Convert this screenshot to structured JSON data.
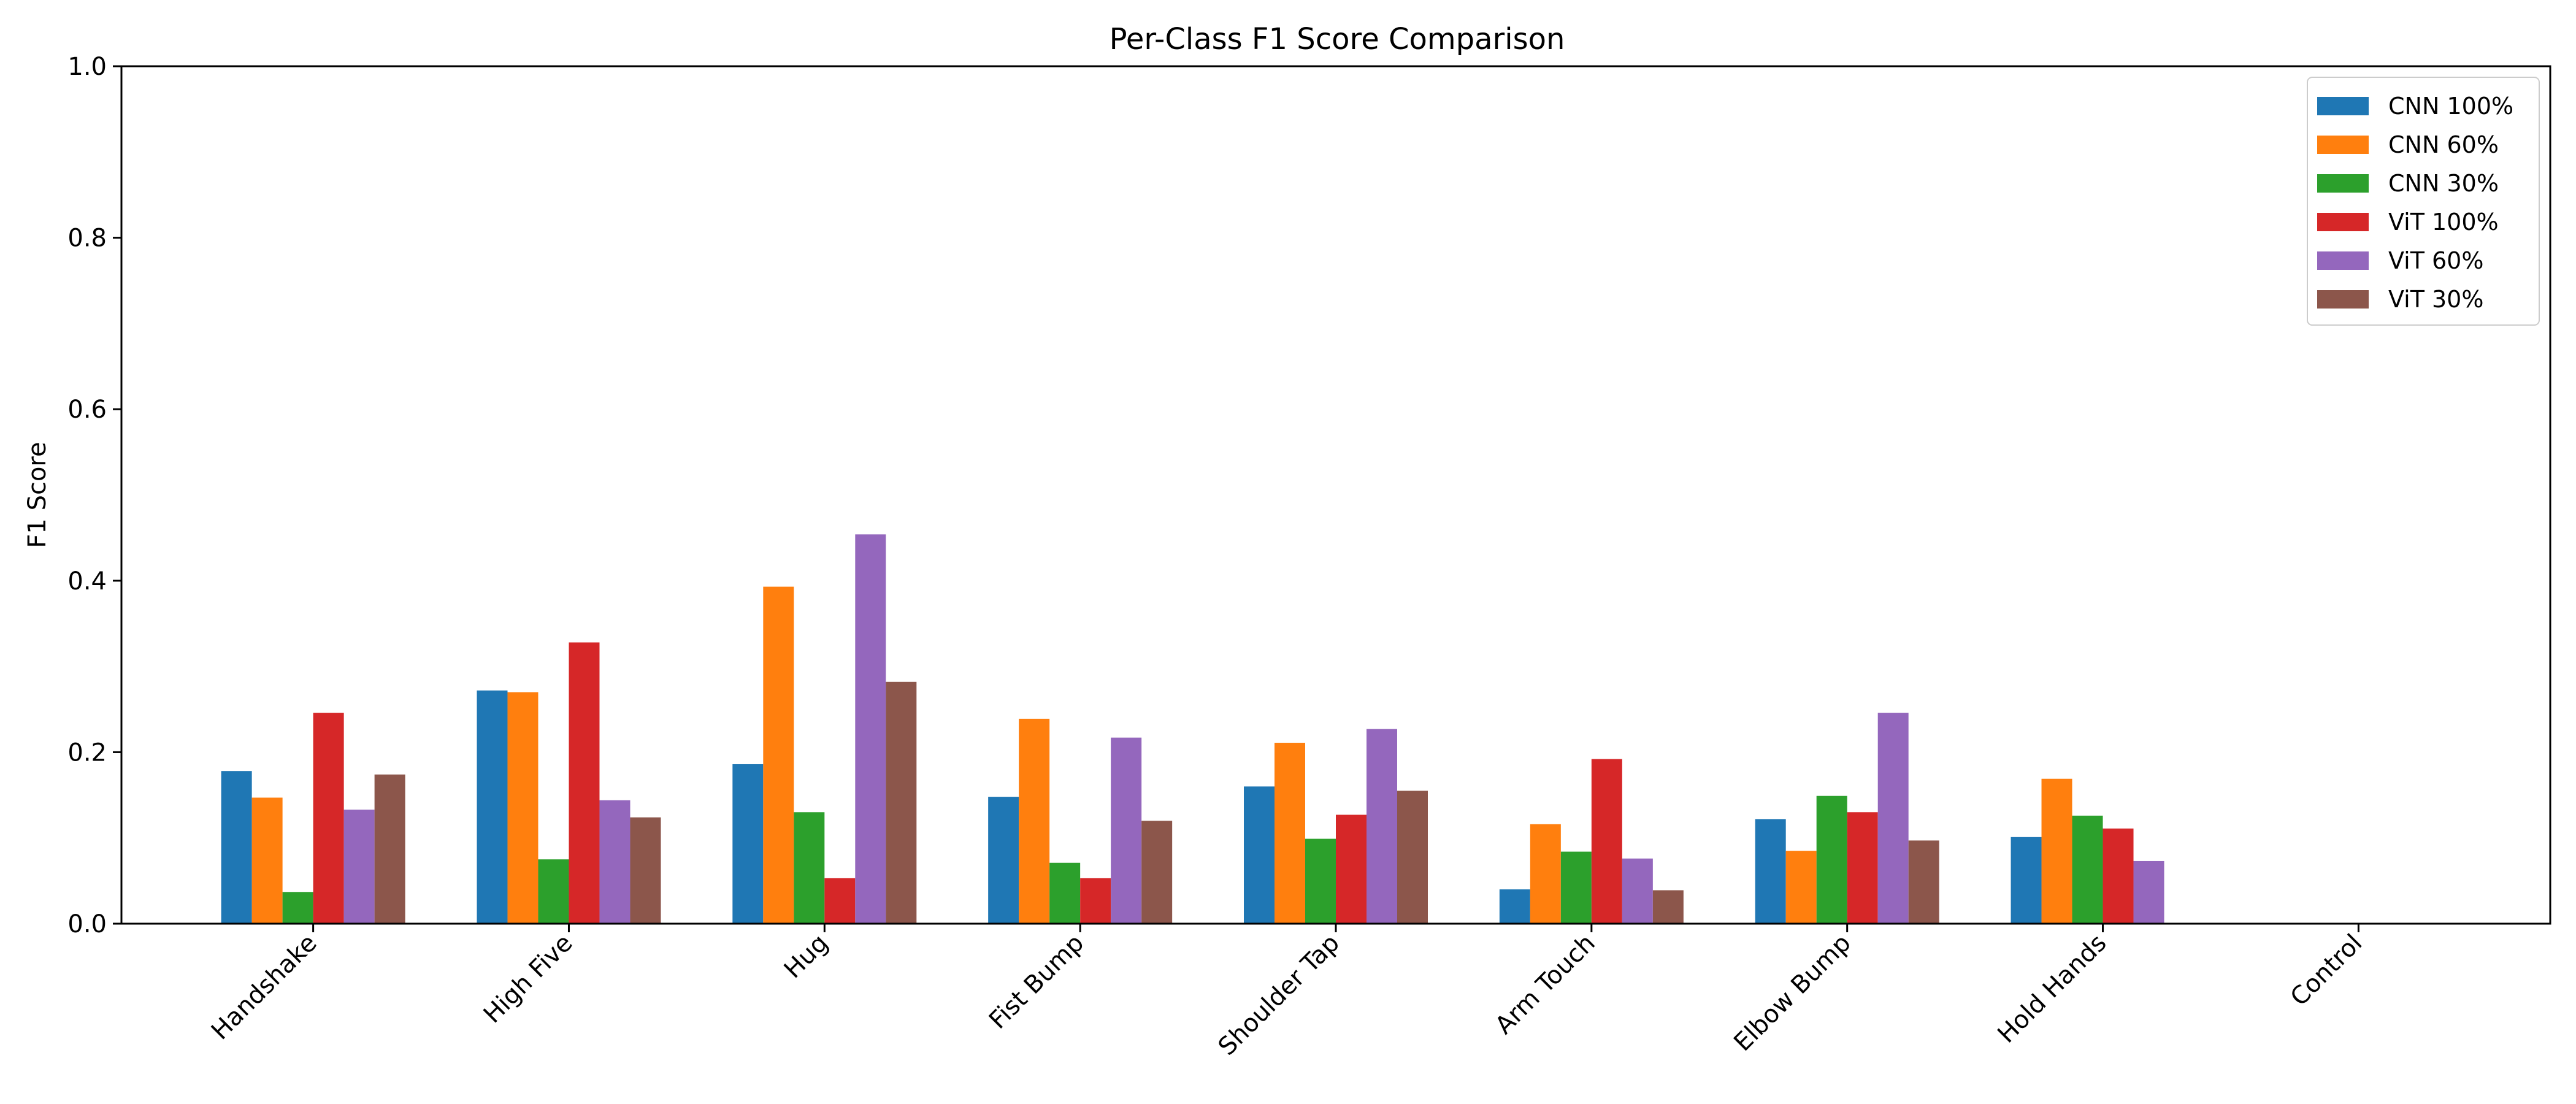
{
  "chart_data": {
    "type": "bar",
    "title": "Per-Class F1 Score Comparison",
    "xlabel": "",
    "ylabel": "F1 Score",
    "ylim": [
      0,
      1.0
    ],
    "yticks": [
      "0.0",
      "0.2",
      "0.4",
      "0.6",
      "0.8",
      "1.0"
    ],
    "ytick_values": [
      0.0,
      0.2,
      0.4,
      0.6,
      0.8,
      1.0
    ],
    "grid": false,
    "legend_position": "top-right",
    "categories": [
      "Handshake",
      "High Five",
      "Hug",
      "Fist Bump",
      "Shoulder Tap",
      "Arm Touch",
      "Elbow Bump",
      "Hold Hands",
      "Control"
    ],
    "series": [
      {
        "name": "CNN 100%",
        "color": "#1f77b4",
        "values": [
          0.178,
          0.272,
          0.186,
          0.148,
          0.16,
          0.04,
          0.122,
          0.101,
          0.0
        ]
      },
      {
        "name": "CNN 60%",
        "color": "#ff7f0e",
        "values": [
          0.147,
          0.27,
          0.393,
          0.239,
          0.211,
          0.116,
          0.085,
          0.169,
          0.0
        ]
      },
      {
        "name": "CNN 30%",
        "color": "#2ca02c",
        "values": [
          0.037,
          0.075,
          0.13,
          0.071,
          0.099,
          0.084,
          0.149,
          0.126,
          0.0
        ]
      },
      {
        "name": "ViT 100%",
        "color": "#d62728",
        "values": [
          0.246,
          0.328,
          0.053,
          0.053,
          0.127,
          0.192,
          0.13,
          0.111,
          0.0
        ]
      },
      {
        "name": "ViT 60%",
        "color": "#9467bd",
        "values": [
          0.133,
          0.144,
          0.454,
          0.217,
          0.227,
          0.076,
          0.246,
          0.073,
          0.0
        ]
      },
      {
        "name": "ViT 30%",
        "color": "#8c564b",
        "values": [
          0.174,
          0.124,
          0.282,
          0.12,
          0.155,
          0.039,
          0.097,
          0.0,
          0.0
        ]
      }
    ]
  }
}
